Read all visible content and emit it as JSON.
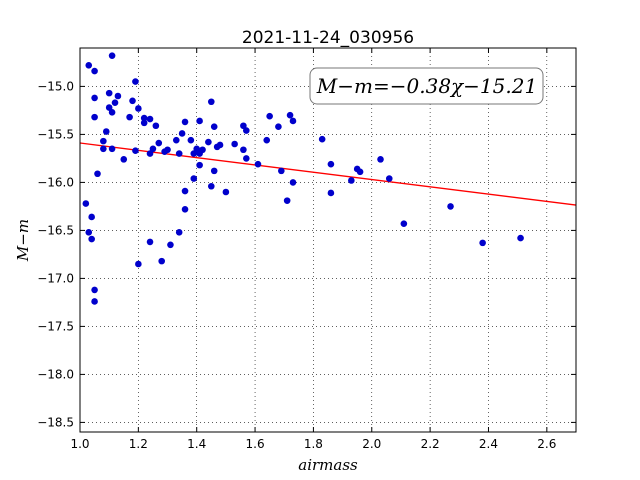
{
  "chart_data": {
    "type": "scatter",
    "title": "2021-11-24_030956",
    "xlabel": "airmass",
    "ylabel": "M−m",
    "xlim": [
      1.0,
      2.7
    ],
    "ylim": [
      -18.6,
      -14.6
    ],
    "y_inverted": true,
    "grid": true,
    "xticks": [
      1.0,
      1.2,
      1.4,
      1.6,
      1.8,
      2.0,
      2.2,
      2.4,
      2.6
    ],
    "xtick_labels": [
      "1.0",
      "1.2",
      "1.4",
      "1.6",
      "1.8",
      "2.0",
      "2.2",
      "2.4",
      "2.6"
    ],
    "yticks": [
      -15.0,
      -15.5,
      -16.0,
      -16.5,
      -17.0,
      -17.5,
      -18.0,
      -18.5
    ],
    "ytick_labels": [
      "−15.0",
      "−15.5",
      "−16.0",
      "−16.5",
      "−17.0",
      "−17.5",
      "−18.0",
      "−18.5"
    ],
    "annotation": "M−m=−0.38χ−15.21",
    "fit": {
      "slope": -0.38,
      "intercept": -15.21,
      "x_range": [
        1.0,
        2.7
      ],
      "color": "#ff0000"
    },
    "point_color": "#0000cc",
    "points": [
      [
        1.03,
        -14.78
      ],
      [
        1.11,
        -14.68
      ],
      [
        1.05,
        -14.84
      ],
      [
        1.19,
        -14.95
      ],
      [
        1.05,
        -15.12
      ],
      [
        1.1,
        -15.07
      ],
      [
        1.13,
        -15.1
      ],
      [
        1.12,
        -15.17
      ],
      [
        1.1,
        -15.22
      ],
      [
        1.11,
        -15.27
      ],
      [
        1.18,
        -15.15
      ],
      [
        1.2,
        -15.23
      ],
      [
        1.05,
        -15.32
      ],
      [
        1.17,
        -15.32
      ],
      [
        1.22,
        -15.33
      ],
      [
        1.22,
        -15.38
      ],
      [
        1.24,
        -15.34
      ],
      [
        1.26,
        -15.41
      ],
      [
        1.09,
        -15.47
      ],
      [
        1.08,
        -15.57
      ],
      [
        1.08,
        -15.65
      ],
      [
        1.11,
        -15.65
      ],
      [
        1.15,
        -15.76
      ],
      [
        1.19,
        -15.67
      ],
      [
        1.24,
        -15.7
      ],
      [
        1.25,
        -15.65
      ],
      [
        1.27,
        -15.59
      ],
      [
        1.29,
        -15.68
      ],
      [
        1.3,
        -15.66
      ],
      [
        1.33,
        -15.56
      ],
      [
        1.34,
        -15.7
      ],
      [
        1.35,
        -15.49
      ],
      [
        1.36,
        -15.37
      ],
      [
        1.38,
        -15.56
      ],
      [
        1.39,
        -15.7
      ],
      [
        1.4,
        -15.65
      ],
      [
        1.41,
        -15.36
      ],
      [
        1.41,
        -15.7
      ],
      [
        1.42,
        -15.66
      ],
      [
        1.44,
        -15.58
      ],
      [
        1.46,
        -15.42
      ],
      [
        1.45,
        -15.16
      ],
      [
        1.47,
        -15.63
      ],
      [
        1.48,
        -15.61
      ],
      [
        1.41,
        -15.82
      ],
      [
        1.39,
        -15.96
      ],
      [
        1.36,
        -16.09
      ],
      [
        1.45,
        -16.04
      ],
      [
        1.46,
        -15.88
      ],
      [
        1.5,
        -16.1
      ],
      [
        1.53,
        -15.6
      ],
      [
        1.56,
        -15.66
      ],
      [
        1.56,
        -15.41
      ],
      [
        1.57,
        -15.46
      ],
      [
        1.57,
        -15.75
      ],
      [
        1.61,
        -15.81
      ],
      [
        1.64,
        -15.56
      ],
      [
        1.65,
        -15.31
      ],
      [
        1.68,
        -15.42
      ],
      [
        1.69,
        -15.88
      ],
      [
        1.72,
        -15.3
      ],
      [
        1.73,
        -15.36
      ],
      [
        1.73,
        -16.0
      ],
      [
        1.71,
        -16.19
      ],
      [
        1.83,
        -15.55
      ],
      [
        1.86,
        -15.81
      ],
      [
        1.86,
        -16.11
      ],
      [
        1.93,
        -15.98
      ],
      [
        1.95,
        -15.86
      ],
      [
        1.96,
        -15.89
      ],
      [
        2.03,
        -15.76
      ],
      [
        2.06,
        -15.96
      ],
      [
        2.11,
        -16.43
      ],
      [
        2.27,
        -16.25
      ],
      [
        2.38,
        -16.63
      ],
      [
        2.51,
        -16.58
      ],
      [
        1.02,
        -16.22
      ],
      [
        1.03,
        -16.52
      ],
      [
        1.04,
        -16.59
      ],
      [
        1.04,
        -16.36
      ],
      [
        1.05,
        -17.12
      ],
      [
        1.05,
        -17.24
      ],
      [
        1.06,
        -15.91
      ],
      [
        1.2,
        -16.85
      ],
      [
        1.24,
        -16.62
      ],
      [
        1.28,
        -16.82
      ],
      [
        1.31,
        -16.65
      ],
      [
        1.34,
        -16.52
      ],
      [
        1.36,
        -16.28
      ]
    ]
  }
}
